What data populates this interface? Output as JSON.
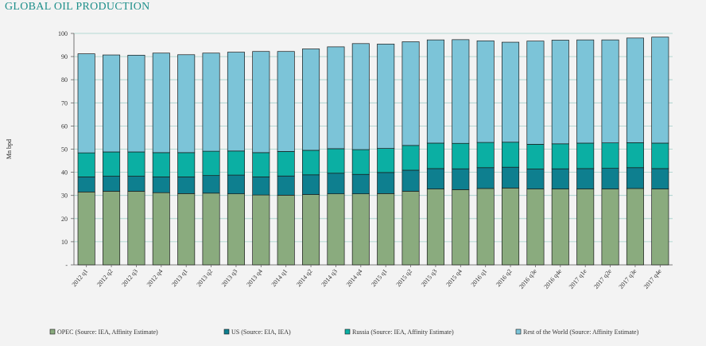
{
  "chart_data": {
    "type": "bar",
    "stacked": true,
    "title": "GLOBAL OIL PRODUCTION",
    "ylabel": "Mn bpd",
    "xlabel": "",
    "ylim": [
      0,
      100
    ],
    "yticks": [
      0,
      10,
      20,
      30,
      40,
      50,
      60,
      70,
      80,
      90,
      100
    ],
    "ytick_labels": [
      "-",
      "10",
      "20",
      "30",
      "40",
      "50",
      "60",
      "70",
      "80",
      "90",
      "100"
    ],
    "grid": true,
    "legend_position": "bottom",
    "categories": [
      "2012 q1",
      "2012 q2",
      "2012 q3",
      "2012 q4",
      "2013 q1",
      "2013 q2",
      "2013 q3",
      "2013 q4",
      "2014 q1",
      "2014 q2",
      "2014 q3",
      "2014 q4",
      "2015 q1",
      "2015 q2",
      "2015 q3",
      "2015 q4",
      "2016 q1",
      "2016 q2",
      "2016 q3e",
      "2016 q4e",
      "2017 q1e",
      "2017 q2e",
      "2017 q3e",
      "2017 q4e"
    ],
    "series": [
      {
        "name": "OPEC (Source: IEA, Affinity Estimate)",
        "color": "#8aab7e",
        "values": [
          31.5,
          31.8,
          31.8,
          31.2,
          30.8,
          31.0,
          30.7,
          30.2,
          30.1,
          30.4,
          30.7,
          30.7,
          30.8,
          31.8,
          32.8,
          32.5,
          33.0,
          33.2,
          32.8,
          32.8,
          32.8,
          32.8,
          33.0,
          32.8
        ]
      },
      {
        "name": "US (Source: EIA, IEA)",
        "color": "#0e7f8f",
        "values": [
          6.5,
          6.5,
          6.5,
          6.8,
          7.2,
          7.6,
          8.1,
          7.8,
          8.3,
          8.5,
          8.9,
          8.4,
          9.1,
          9.1,
          8.8,
          9.0,
          9.0,
          9.0,
          8.6,
          8.7,
          8.8,
          8.9,
          9.0,
          8.8
        ]
      },
      {
        "name": "Russia (Source: IEA, Affinity Estimate)",
        "color": "#0bafa3",
        "values": [
          10.4,
          10.5,
          10.5,
          10.5,
          10.5,
          10.5,
          10.4,
          10.5,
          10.6,
          10.6,
          10.6,
          10.7,
          10.4,
          10.7,
          11.0,
          11.0,
          10.9,
          10.8,
          10.7,
          10.8,
          11.0,
          11.0,
          10.8,
          11.0
        ]
      },
      {
        "name": "Rest of the World (Source: Affinity Estimate)",
        "color": "#7cc4d8",
        "values": [
          42.8,
          41.9,
          41.8,
          43.0,
          42.3,
          42.4,
          42.7,
          43.7,
          43.2,
          43.8,
          44.0,
          45.8,
          45.1,
          44.8,
          44.6,
          44.8,
          43.9,
          43.2,
          44.6,
          44.8,
          44.6,
          44.5,
          45.2,
          45.8
        ]
      }
    ]
  }
}
